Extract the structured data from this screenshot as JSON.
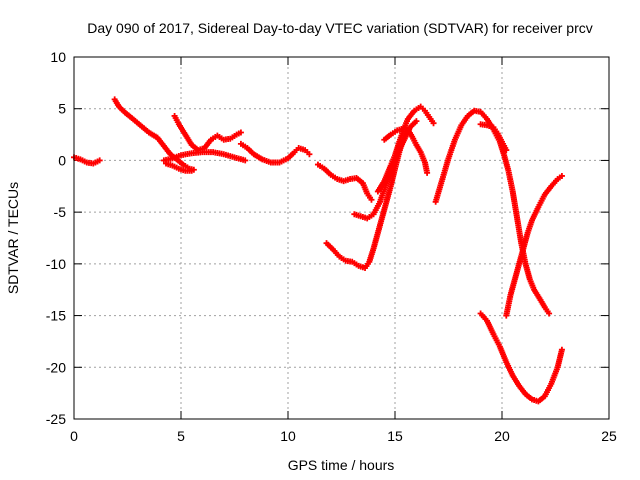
{
  "chart_data": {
    "type": "scatter",
    "title": "Day 090 of 2017, Sidereal Day-to-day VTEC variation (SDTVAR) for receiver prcv",
    "xlabel": "GPS time / hours",
    "ylabel": "SDTVAR / TECUs",
    "xlim": [
      0,
      25
    ],
    "ylim": [
      -25,
      10
    ],
    "xticks": [
      "0",
      "5",
      "10",
      "15",
      "20",
      "25"
    ],
    "yticks": [
      "10",
      "5",
      "0",
      "-5",
      "-10",
      "-15",
      "-20",
      "-25"
    ],
    "grid": true,
    "marker": "plus",
    "color": "#ff0000",
    "series": [
      {
        "points": [
          [
            0,
            0.3
          ],
          [
            0.3,
            0.1
          ],
          [
            0.6,
            -0.2
          ],
          [
            0.9,
            -0.3
          ],
          [
            1.2,
            0
          ]
        ]
      },
      {
        "points": [
          [
            1.9,
            5.9
          ],
          [
            2.1,
            5.2
          ],
          [
            2.4,
            4.6
          ],
          [
            2.7,
            4.1
          ],
          [
            3.1,
            3.4
          ],
          [
            3.5,
            2.7
          ],
          [
            3.9,
            2.2
          ],
          [
            4.2,
            1.4
          ],
          [
            4.5,
            0.6
          ],
          [
            4.8,
            0.1
          ],
          [
            5.1,
            -0.4
          ],
          [
            5.4,
            -0.8
          ],
          [
            5.6,
            -0.9
          ]
        ]
      },
      {
        "points": [
          [
            4.7,
            4.3
          ],
          [
            4.9,
            3.5
          ],
          [
            5.2,
            2.5
          ],
          [
            5.5,
            1.5
          ],
          [
            5.8,
            1.0
          ],
          [
            6.1,
            1.2
          ],
          [
            6.4,
            2.0
          ],
          [
            6.7,
            2.4
          ],
          [
            7.0,
            2.0
          ],
          [
            7.3,
            2.1
          ],
          [
            7.6,
            2.5
          ],
          [
            7.8,
            2.7
          ]
        ]
      },
      {
        "points": [
          [
            4.2,
            0
          ],
          [
            4.6,
            0.2
          ],
          [
            5.0,
            0.5
          ],
          [
            5.5,
            0.7
          ],
          [
            6.0,
            0.8
          ],
          [
            6.5,
            0.8
          ],
          [
            7.0,
            0.6
          ],
          [
            7.5,
            0.3
          ],
          [
            8.0,
            0
          ]
        ]
      },
      {
        "points": [
          [
            4.3,
            -0.3
          ],
          [
            4.6,
            -0.5
          ],
          [
            4.9,
            -0.8
          ],
          [
            5.2,
            -1.0
          ],
          [
            5.5,
            -1.0
          ]
        ]
      },
      {
        "points": [
          [
            7.8,
            1.6
          ],
          [
            8.1,
            1.2
          ],
          [
            8.4,
            0.6
          ],
          [
            8.8,
            0.1
          ],
          [
            9.2,
            -0.2
          ],
          [
            9.6,
            -0.2
          ],
          [
            10.0,
            0.2
          ],
          [
            10.3,
            0.8
          ],
          [
            10.5,
            1.2
          ],
          [
            10.8,
            1.0
          ],
          [
            11.0,
            0.6
          ]
        ]
      },
      {
        "points": [
          [
            11.4,
            -0.4
          ],
          [
            11.7,
            -0.8
          ],
          [
            12.0,
            -1.4
          ],
          [
            12.3,
            -1.8
          ],
          [
            12.6,
            -2.0
          ],
          [
            12.9,
            -1.8
          ],
          [
            13.2,
            -1.7
          ],
          [
            13.5,
            -2.2
          ],
          [
            13.7,
            -3.2
          ],
          [
            13.9,
            -3.8
          ]
        ]
      },
      {
        "points": [
          [
            11.8,
            -8.0
          ],
          [
            12.1,
            -8.6
          ],
          [
            12.4,
            -9.3
          ],
          [
            12.7,
            -9.7
          ],
          [
            13.0,
            -9.8
          ],
          [
            13.3,
            -10.2
          ],
          [
            13.6,
            -10.4
          ],
          [
            13.8,
            -9.8
          ],
          [
            14.0,
            -8.5
          ],
          [
            14.2,
            -7.0
          ],
          [
            14.4,
            -5.5
          ],
          [
            14.6,
            -4.0
          ],
          [
            14.8,
            -2.5
          ],
          [
            15.0,
            -0.8
          ],
          [
            15.2,
            0.8
          ],
          [
            15.4,
            2.2
          ],
          [
            15.6,
            3.0
          ]
        ]
      },
      {
        "points": [
          [
            13.1,
            -5.2
          ],
          [
            13.4,
            -5.4
          ],
          [
            13.7,
            -5.6
          ],
          [
            14.0,
            -5.2
          ],
          [
            14.3,
            -4.0
          ],
          [
            14.6,
            -2.2
          ],
          [
            14.9,
            -0.5
          ],
          [
            15.2,
            1.0
          ],
          [
            15.5,
            2.3
          ],
          [
            15.7,
            3.2
          ],
          [
            16.0,
            3.8
          ]
        ]
      },
      {
        "points": [
          [
            14.2,
            -3.0
          ],
          [
            14.5,
            -2.0
          ],
          [
            14.8,
            -0.5
          ],
          [
            15.0,
            0.5
          ],
          [
            15.2,
            1.8
          ],
          [
            15.4,
            3.0
          ],
          [
            15.6,
            4.0
          ],
          [
            15.9,
            4.8
          ],
          [
            16.2,
            5.2
          ],
          [
            16.4,
            4.8
          ],
          [
            16.6,
            4.2
          ],
          [
            16.8,
            3.6
          ]
        ]
      },
      {
        "points": [
          [
            14.5,
            2.0
          ],
          [
            14.8,
            2.5
          ],
          [
            15.1,
            2.9
          ],
          [
            15.4,
            3.1
          ],
          [
            15.6,
            3.0
          ],
          [
            15.8,
            2.3
          ],
          [
            16.0,
            1.5
          ],
          [
            16.2,
            0.8
          ],
          [
            16.4,
            -0.2
          ],
          [
            16.5,
            -1.2
          ]
        ]
      },
      {
        "points": [
          [
            16.9,
            -4.0
          ],
          [
            17.1,
            -2.6
          ],
          [
            17.3,
            -1.2
          ],
          [
            17.5,
            0.2
          ],
          [
            17.8,
            2.0
          ],
          [
            18.1,
            3.4
          ],
          [
            18.4,
            4.3
          ],
          [
            18.7,
            4.8
          ],
          [
            19.0,
            4.7
          ],
          [
            19.3,
            4.0
          ],
          [
            19.6,
            3.0
          ],
          [
            19.9,
            1.8
          ],
          [
            20.1,
            0.5
          ],
          [
            20.3,
            -1.0
          ],
          [
            20.5,
            -3.0
          ],
          [
            20.7,
            -5.5
          ],
          [
            20.9,
            -8.0
          ],
          [
            21.1,
            -10.0
          ],
          [
            21.3,
            -11.5
          ],
          [
            21.5,
            -12.5
          ],
          [
            21.8,
            -13.5
          ],
          [
            22.0,
            -14.2
          ],
          [
            22.2,
            -14.8
          ]
        ]
      },
      {
        "points": [
          [
            19.0,
            3.5
          ],
          [
            19.3,
            3.4
          ],
          [
            19.6,
            3.2
          ],
          [
            19.8,
            2.6
          ],
          [
            20.0,
            1.8
          ],
          [
            20.2,
            1.0
          ]
        ]
      },
      {
        "points": [
          [
            20.2,
            -15.0
          ],
          [
            20.4,
            -13.0
          ],
          [
            20.6,
            -11.5
          ],
          [
            20.8,
            -10.0
          ],
          [
            21.0,
            -8.5
          ],
          [
            21.2,
            -7.0
          ],
          [
            21.4,
            -5.8
          ],
          [
            21.7,
            -4.5
          ],
          [
            22.0,
            -3.3
          ],
          [
            22.3,
            -2.5
          ],
          [
            22.6,
            -1.8
          ],
          [
            22.8,
            -1.5
          ]
        ]
      },
      {
        "points": [
          [
            19.0,
            -14.8
          ],
          [
            19.3,
            -15.5
          ],
          [
            19.6,
            -16.8
          ],
          [
            19.9,
            -18.0
          ],
          [
            20.2,
            -19.5
          ],
          [
            20.5,
            -20.8
          ],
          [
            20.8,
            -21.8
          ],
          [
            21.1,
            -22.6
          ],
          [
            21.4,
            -23.1
          ],
          [
            21.7,
            -23.3
          ],
          [
            22.0,
            -22.8
          ],
          [
            22.3,
            -21.6
          ],
          [
            22.6,
            -20.0
          ],
          [
            22.8,
            -18.3
          ]
        ]
      }
    ]
  }
}
